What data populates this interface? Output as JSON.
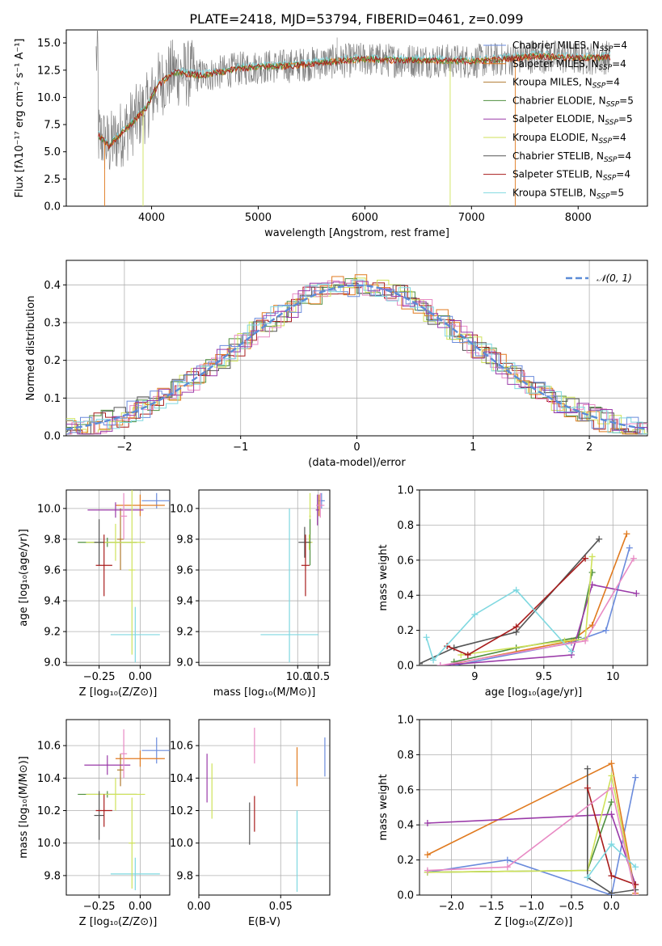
{
  "title": "PLATE=2418, MJD=53794, FIBERID=0461, z=0.099",
  "colors": {
    "Chabrier MILES": "#6a8bdc",
    "Salpeter MILES": "#e07a1f",
    "Kroupa MILES": "#b07a30",
    "Chabrier ELODIE": "#4f8f3f",
    "Salpeter ELODIE": "#9a3aa8",
    "Kroupa ELODIE": "#cfe25a",
    "Chabrier STELIB": "#555555",
    "Salpeter STELIB": "#a81c1c",
    "Kroupa STELIB": "#7fd8e0",
    "extra_pink": "#e88ac4",
    "normal": "#5b8bd6"
  },
  "chart_data": [
    {
      "type": "line",
      "title": "PLATE=2418, MJD=53794, FIBERID=0461, z=0.099",
      "xlabel": "wavelength [Angstrom, rest frame]",
      "ylabel": "Flux [fλ10⁻¹⁷ erg cm⁻² s⁻¹ A⁻¹]",
      "xlim": [
        3200,
        8650
      ],
      "ylim": [
        0,
        16.2
      ],
      "xticks": [
        4000,
        5000,
        6000,
        7000,
        8000
      ],
      "yticks": [
        0.0,
        2.5,
        5.0,
        7.5,
        10.0,
        12.5,
        15.0
      ],
      "legend_position": "right",
      "legend": [
        {
          "name": "Chabrier MILES",
          "nssp": "4"
        },
        {
          "name": "Salpeter MILES",
          "nssp": "4"
        },
        {
          "name": "Kroupa MILES",
          "nssp": "4"
        },
        {
          "name": "Chabrier ELODIE",
          "nssp": "5"
        },
        {
          "name": "Salpeter ELODIE",
          "nssp": "5"
        },
        {
          "name": "Kroupa ELODIE",
          "nssp": "4"
        },
        {
          "name": "Chabrier STELIB",
          "nssp": "4"
        },
        {
          "name": "Salpeter STELIB",
          "nssp": "4"
        },
        {
          "name": "Kroupa STELIB",
          "nssp": "5"
        }
      ],
      "nssp_prefix": "N",
      "nssp_sub": "SSP",
      "continuum": {
        "x": [
          3500,
          3600,
          3800,
          3950,
          4050,
          4200,
          4500,
          4800,
          5000,
          5300,
          5600,
          6000,
          6300,
          6600,
          7000,
          7300,
          7600,
          8000,
          8300
        ],
        "y": [
          6.5,
          5.5,
          7.5,
          9.0,
          11.0,
          12.3,
          12.0,
          12.6,
          12.8,
          12.9,
          13.2,
          13.5,
          13.4,
          13.4,
          13.3,
          13.5,
          13.8,
          13.6,
          13.7
        ]
      }
    },
    {
      "type": "bar",
      "xlabel": "(data-model)/error",
      "ylabel": "Normed distribution",
      "xlim": [
        -2.5,
        2.5
      ],
      "ylim": [
        0,
        0.465
      ],
      "xticks": [
        -2,
        -1,
        0,
        1,
        2
      ],
      "xtick_labels": [
        "−2",
        "−1",
        "0",
        "1",
        "2"
      ],
      "yticks": [
        0.0,
        0.1,
        0.2,
        0.3,
        0.4
      ],
      "legend_label": "𝒩(0, 1)",
      "legend_position": "top-right",
      "bin_width": 0.1
    },
    {
      "type": "scatter",
      "xlabel": "Z [log₁₀(Z/Z⊙)]",
      "ylabel": "age  [log₁₀(age/yr)]",
      "xlim": [
        -0.45,
        0.18
      ],
      "ylim": [
        8.98,
        10.12
      ],
      "xticks": [
        -0.25,
        0.0
      ],
      "xtick_labels": [
        "−0.25",
        "0.00"
      ],
      "yticks": [
        9.0,
        9.2,
        9.4,
        9.6,
        9.8,
        10.0
      ],
      "points": [
        {
          "c": "Chabrier MILES",
          "x": 0.1,
          "xe": 0.09,
          "y": 10.05,
          "ye": 0.05
        },
        {
          "c": "Salpeter MILES",
          "x": 0.0,
          "xe": 0.15,
          "y": 10.02,
          "ye": 0.07
        },
        {
          "c": "Kroupa MILES",
          "x": -0.12,
          "xe": 0.02,
          "y": 9.8,
          "ye": 0.2
        },
        {
          "c": "Chabrier ELODIE",
          "x": -0.2,
          "xe": 0.18,
          "y": 9.78,
          "ye": 0.03
        },
        {
          "c": "Salpeter ELODIE",
          "x": -0.15,
          "xe": 0.17,
          "y": 9.99,
          "ye": 0.05
        },
        {
          "c": "Kroupa ELODIE",
          "x": -0.15,
          "xe": 0.18,
          "y": 9.78,
          "ye": 0.12
        },
        {
          "c": "Chabrier STELIB",
          "x": -0.25,
          "xe": 0.03,
          "y": 9.78,
          "ye": 0.15
        },
        {
          "c": "Salpeter STELIB",
          "x": -0.22,
          "xe": 0.05,
          "y": 9.63,
          "ye": 0.2
        },
        {
          "c": "Kroupa STELIB",
          "x": -0.03,
          "xe": 0.15,
          "y": 9.18,
          "ye": 0.18
        },
        {
          "c": "extra_pink",
          "x": -0.1,
          "xe": 0.02,
          "y": 9.95,
          "ye": 0.15
        },
        {
          "c": "Kroupa ELODIE",
          "x": -0.05,
          "xe": 0.02,
          "y": 9.6,
          "ye": 0.55
        }
      ]
    },
    {
      "type": "scatter",
      "xlabel": "mass [log₁₀(M/M⊙)]",
      "xlim": [
        7.6,
        10.78
      ],
      "ylim": [
        8.98,
        10.12
      ],
      "xticks": [
        10.0,
        10.5
      ],
      "xtick_labels": [
        "10.0",
        "10.5"
      ],
      "yticks": [
        9.0,
        9.2,
        9.4,
        9.6,
        9.8,
        10.0
      ],
      "points": [
        {
          "c": "Chabrier MILES",
          "x": 10.58,
          "xe": 0.08,
          "y": 10.05,
          "ye": 0.05
        },
        {
          "c": "Salpeter MILES",
          "x": 10.52,
          "xe": 0.06,
          "y": 10.02,
          "ye": 0.07
        },
        {
          "c": "Kroupa ELODIE",
          "x": 10.3,
          "xe": 0.02,
          "y": 9.95,
          "ye": 0.15
        },
        {
          "c": "Chabrier ELODIE",
          "x": 10.3,
          "xe": 0.02,
          "y": 9.78,
          "ye": 0.15
        },
        {
          "c": "Salpeter ELODIE",
          "x": 10.48,
          "xe": 0.04,
          "y": 9.99,
          "ye": 0.1
        },
        {
          "c": "Kroupa ELODIE",
          "x": 10.28,
          "xe": 0.08,
          "y": 9.78,
          "ye": 0.05
        },
        {
          "c": "Chabrier STELIB",
          "x": 10.17,
          "xe": 0.15,
          "y": 9.78,
          "ye": 0.1
        },
        {
          "c": "Salpeter STELIB",
          "x": 10.19,
          "xe": 0.1,
          "y": 9.63,
          "ye": 0.2
        },
        {
          "c": "Kroupa STELIB",
          "x": 9.8,
          "xe": 0.7,
          "y": 9.18,
          "ye": 0.0
        },
        {
          "c": "Kroupa STELIB",
          "x": 9.8,
          "xe": 0.0,
          "y": 9.5,
          "ye": 0.5
        },
        {
          "c": "extra_pink",
          "x": 10.55,
          "xe": 0.1,
          "y": 10.02,
          "ye": 0.08
        }
      ]
    },
    {
      "type": "line",
      "xlabel": "age  [log₁₀(age/yr)]",
      "ylabel": "mass weight",
      "xlim": [
        8.6,
        10.25
      ],
      "ylim": [
        0,
        1.0
      ],
      "xticks": [
        9.0,
        9.5,
        10.0
      ],
      "yticks": [
        0.0,
        0.2,
        0.4,
        0.6,
        0.8,
        1.0
      ],
      "series": [
        {
          "c": "Chabrier MILES",
          "x": [
            8.85,
            9.7,
            9.95,
            10.12
          ],
          "y": [
            0.0,
            0.13,
            0.2,
            0.67
          ]
        },
        {
          "c": "Salpeter MILES",
          "x": [
            8.85,
            9.7,
            9.85,
            10.1
          ],
          "y": [
            0.01,
            0.14,
            0.23,
            0.75
          ]
        },
        {
          "c": "Chabrier ELODIE",
          "x": [
            8.85,
            9.3,
            9.75,
            9.85
          ],
          "y": [
            0.02,
            0.1,
            0.16,
            0.53
          ]
        },
        {
          "c": "Salpeter ELODIE",
          "x": [
            8.75,
            9.7,
            9.85,
            10.17
          ],
          "y": [
            0.0,
            0.06,
            0.46,
            0.41
          ]
        },
        {
          "c": "Kroupa ELODIE",
          "x": [
            8.9,
            9.65,
            9.8,
            9.85
          ],
          "y": [
            0.06,
            0.14,
            0.15,
            0.62
          ]
        },
        {
          "c": "Chabrier STELIB",
          "x": [
            8.6,
            8.85,
            9.3,
            9.9
          ],
          "y": [
            0.01,
            0.1,
            0.19,
            0.72
          ]
        },
        {
          "c": "Salpeter STELIB",
          "x": [
            8.8,
            8.95,
            9.3,
            9.8
          ],
          "y": [
            0.11,
            0.06,
            0.22,
            0.61
          ]
        },
        {
          "c": "Kroupa STELIB",
          "x": [
            8.65,
            8.7,
            9.0,
            9.3,
            9.7
          ],
          "y": [
            0.16,
            0.03,
            0.29,
            0.43,
            0.08
          ]
        },
        {
          "c": "extra_pink",
          "x": [
            8.75,
            9.8,
            10.15
          ],
          "y": [
            0.0,
            0.14,
            0.61
          ]
        }
      ]
    },
    {
      "type": "scatter",
      "xlabel": "Z [log₁₀(Z/Z⊙)]",
      "ylabel": "mass [log₁₀(M/M⊙)]",
      "xlim": [
        -0.45,
        0.18
      ],
      "ylim": [
        9.68,
        10.76
      ],
      "xticks": [
        -0.25,
        0.0
      ],
      "xtick_labels": [
        "−0.25",
        "0.00"
      ],
      "yticks": [
        9.8,
        10.0,
        10.2,
        10.4,
        10.6
      ],
      "points": [
        {
          "c": "Chabrier MILES",
          "x": 0.1,
          "xe": 0.09,
          "y": 10.57,
          "ye": 0.08
        },
        {
          "c": "Salpeter MILES",
          "x": 0.0,
          "xe": 0.15,
          "y": 10.52,
          "ye": 0.05
        },
        {
          "c": "Kroupa MILES",
          "x": -0.12,
          "xe": 0.02,
          "y": 10.45,
          "ye": 0.1
        },
        {
          "c": "Chabrier ELODIE",
          "x": -0.2,
          "xe": 0.18,
          "y": 10.3,
          "ye": 0.02
        },
        {
          "c": "Salpeter ELODIE",
          "x": -0.2,
          "xe": 0.14,
          "y": 10.48,
          "ye": 0.06
        },
        {
          "c": "Kroupa ELODIE",
          "x": -0.15,
          "xe": 0.18,
          "y": 10.3,
          "ye": 0.1
        },
        {
          "c": "Chabrier STELIB",
          "x": -0.25,
          "xe": 0.03,
          "y": 10.17,
          "ye": 0.15
        },
        {
          "c": "Salpeter STELIB",
          "x": -0.22,
          "xe": 0.05,
          "y": 10.2,
          "ye": 0.1
        },
        {
          "c": "Kroupa STELIB",
          "x": -0.03,
          "xe": 0.15,
          "y": 9.81,
          "ye": 0.1
        },
        {
          "c": "extra_pink",
          "x": -0.1,
          "xe": 0.02,
          "y": 10.55,
          "ye": 0.15
        },
        {
          "c": "Kroupa ELODIE",
          "x": -0.05,
          "xe": 0.02,
          "y": 10.0,
          "ye": 0.28
        }
      ]
    },
    {
      "type": "scatter",
      "xlabel": "E(B-V)",
      "xlim": [
        0.0,
        0.08
      ],
      "ylim": [
        9.68,
        10.76
      ],
      "xticks": [
        0.0,
        0.05
      ],
      "xtick_labels": [
        "0.00",
        "0.05"
      ],
      "yticks": [
        9.8,
        10.0,
        10.2,
        10.4,
        10.6
      ],
      "points": [
        {
          "c": "Chabrier MILES",
          "x": 0.077,
          "y": 10.53,
          "ye": 0.12
        },
        {
          "c": "Salpeter MILES",
          "x": 0.06,
          "y": 10.47,
          "ye": 0.12
        },
        {
          "c": "Salpeter ELODIE",
          "x": 0.005,
          "y": 10.4,
          "ye": 0.15
        },
        {
          "c": "Kroupa ELODIE",
          "x": 0.008,
          "y": 10.32,
          "ye": 0.17
        },
        {
          "c": "Chabrier STELIB",
          "x": 0.031,
          "y": 10.12,
          "ye": 0.13
        },
        {
          "c": "Salpeter STELIB",
          "x": 0.034,
          "y": 10.18,
          "ye": 0.11
        },
        {
          "c": "Kroupa STELIB",
          "x": 0.06,
          "y": 9.95,
          "ye": 0.25
        },
        {
          "c": "extra_pink",
          "x": 0.034,
          "y": 10.6,
          "ye": 0.11
        }
      ]
    },
    {
      "type": "line",
      "xlabel": "Z [log₁₀(Z/Z⊙)]",
      "ylabel": "mass weight",
      "xlim": [
        -2.4,
        0.45
      ],
      "ylim": [
        0,
        1.0
      ],
      "xticks": [
        -2.0,
        -1.5,
        -1.0,
        -0.5,
        0.0
      ],
      "xtick_labels": [
        "−2.0",
        "−1.5",
        "−1.0",
        "−0.5",
        "0.0"
      ],
      "yticks": [
        0.0,
        0.2,
        0.4,
        0.6,
        0.8,
        1.0
      ],
      "series": [
        {
          "c": "Chabrier MILES",
          "x": [
            -2.3,
            -1.3,
            0.0,
            0.3
          ],
          "y": [
            0.13,
            0.2,
            0.0,
            0.67
          ]
        },
        {
          "c": "Salpeter MILES",
          "x": [
            -2.3,
            0.0,
            0.3
          ],
          "y": [
            0.23,
            0.75,
            0.01
          ]
        },
        {
          "c": "Chabrier ELODIE",
          "x": [
            -2.3,
            -0.3,
            0.0
          ],
          "y": [
            0.13,
            0.14,
            0.53
          ]
        },
        {
          "c": "Salpeter ELODIE",
          "x": [
            -2.3,
            0.0,
            0.3
          ],
          "y": [
            0.41,
            0.46,
            0.06
          ]
        },
        {
          "c": "Kroupa ELODIE",
          "x": [
            -2.3,
            -0.3,
            0.0,
            0.3
          ],
          "y": [
            0.13,
            0.14,
            0.68,
            0.0
          ]
        },
        {
          "c": "Chabrier STELIB",
          "x": [
            -0.3,
            -0.3,
            0.0,
            0.3
          ],
          "y": [
            0.72,
            0.1,
            0.01,
            0.03
          ]
        },
        {
          "c": "Salpeter STELIB",
          "x": [
            -0.3,
            0.0,
            0.3
          ],
          "y": [
            0.61,
            0.11,
            0.06
          ]
        },
        {
          "c": "Kroupa STELIB",
          "x": [
            -0.3,
            0.0,
            0.3
          ],
          "y": [
            0.1,
            0.29,
            0.16
          ]
        },
        {
          "c": "extra_pink",
          "x": [
            -2.3,
            -1.3,
            0.0,
            0.3
          ],
          "y": [
            0.14,
            0.16,
            0.61,
            0.0
          ]
        }
      ]
    }
  ]
}
